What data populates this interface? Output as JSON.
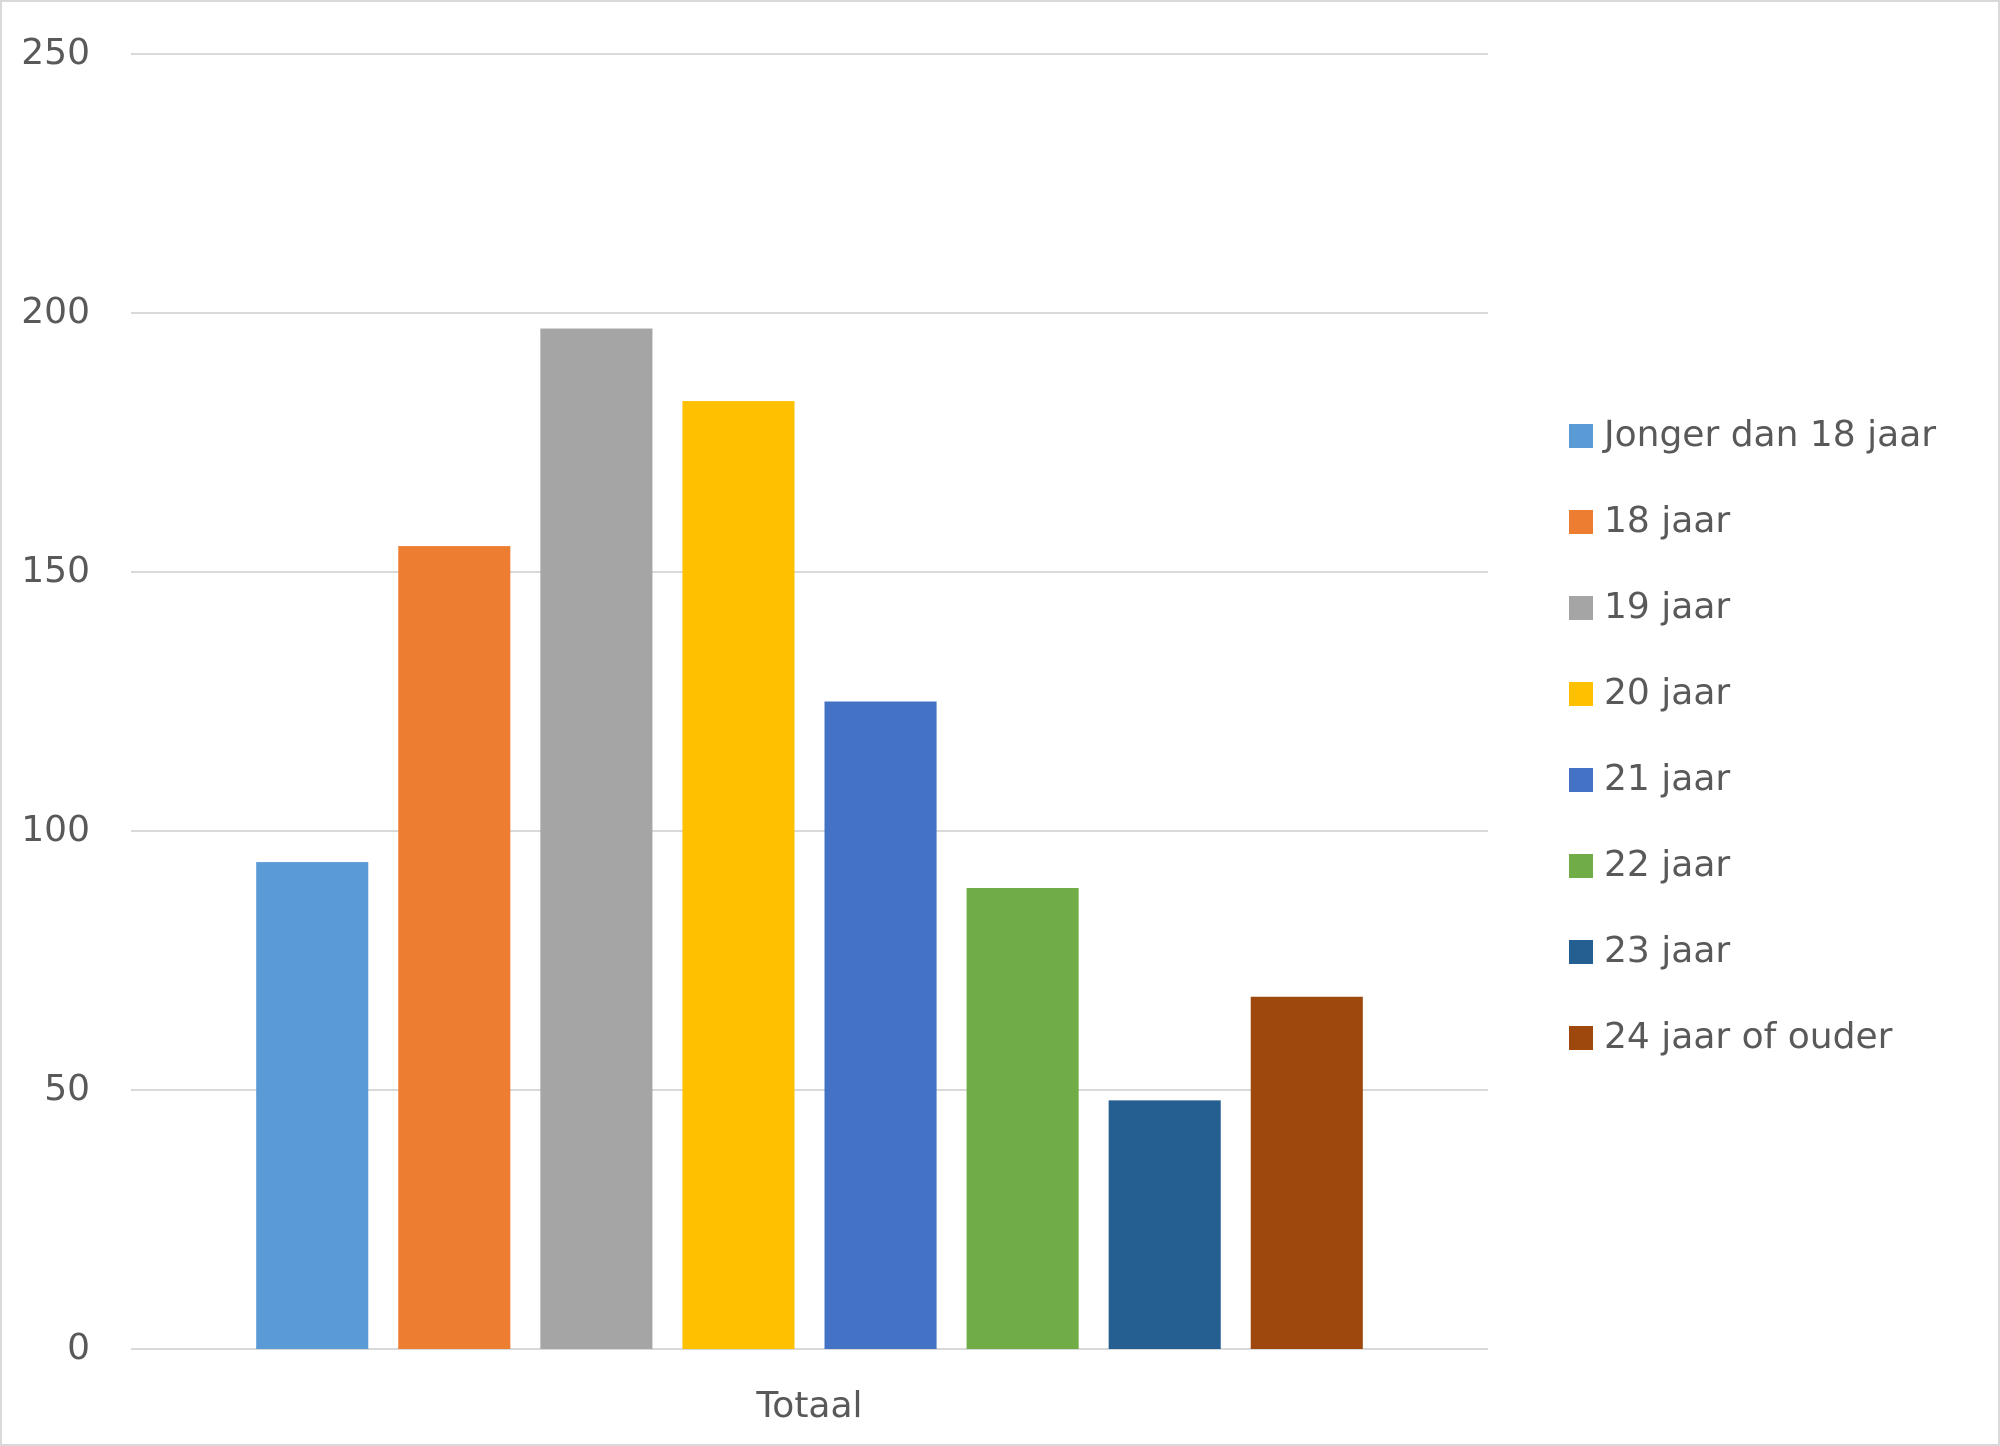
{
  "chart_data": {
    "type": "bar",
    "categories": [
      "Totaal"
    ],
    "series": [
      {
        "name": "Jonger dan 18 jaar",
        "color": "#5b9bd5",
        "values": [
          94
        ]
      },
      {
        "name": "18 jaar",
        "color": "#ed7d31",
        "values": [
          155
        ]
      },
      {
        "name": "19 jaar",
        "color": "#a5a5a5",
        "values": [
          197
        ]
      },
      {
        "name": "20 jaar",
        "color": "#ffc000",
        "values": [
          183
        ]
      },
      {
        "name": "21 jaar",
        "color": "#4472c4",
        "values": [
          125
        ]
      },
      {
        "name": "22 jaar",
        "color": "#70ad47",
        "values": [
          89
        ]
      },
      {
        "name": "23 jaar",
        "color": "#255e91",
        "values": [
          48
        ]
      },
      {
        "name": "24 jaar of ouder",
        "color": "#9e480e",
        "values": [
          68
        ]
      }
    ],
    "ylim": [
      0,
      250
    ],
    "yticks": [
      0,
      50,
      100,
      150,
      200,
      250
    ],
    "grid": true,
    "legend": "right"
  }
}
